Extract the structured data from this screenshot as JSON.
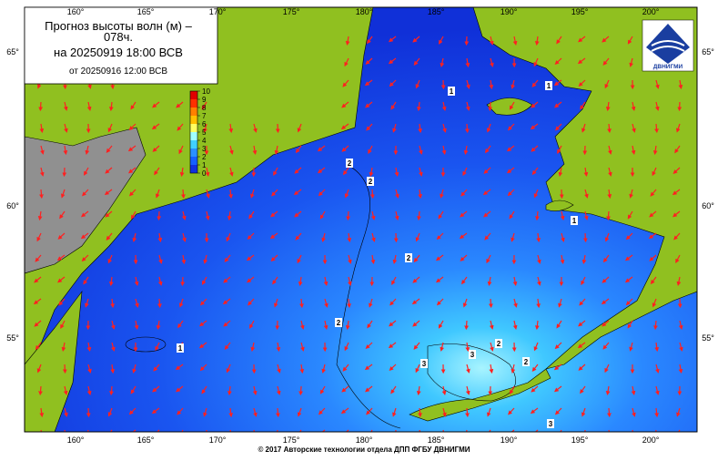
{
  "header": {
    "title_line1": "Прогноз высоты волн (м) –",
    "title_line2": "078ч.",
    "forecast_for": "на 20250919 18:00 ВСВ",
    "issued": "от 20250916 12:00 ВСВ"
  },
  "logo": {
    "text": "ДВНИГМИ"
  },
  "longitude_labels": [
    "160°",
    "165°",
    "170°",
    "175°",
    "180°",
    "185°",
    "190°",
    "195°",
    "200°"
  ],
  "latitude_labels": [
    "65°",
    "60°",
    "55°"
  ],
  "colorbar": {
    "ticks": [
      0,
      1,
      2,
      3,
      4,
      5,
      6,
      7,
      8,
      9,
      10
    ],
    "colors": [
      "#1030e0",
      "#1560ff",
      "#2a90ff",
      "#40d0ff",
      "#a0ffff",
      "#ffff60",
      "#ffc000",
      "#ff8000",
      "#ff3000",
      "#e00000",
      "#a00000"
    ]
  },
  "contour_labels": [
    "1",
    "1",
    "1",
    "2",
    "2",
    "2",
    "2",
    "2",
    "1",
    "3",
    "3",
    "2",
    "3"
  ],
  "footer": "© 2017 Авторские технологии отдела ДПП ФГБУ ДВНИГМИ"
}
